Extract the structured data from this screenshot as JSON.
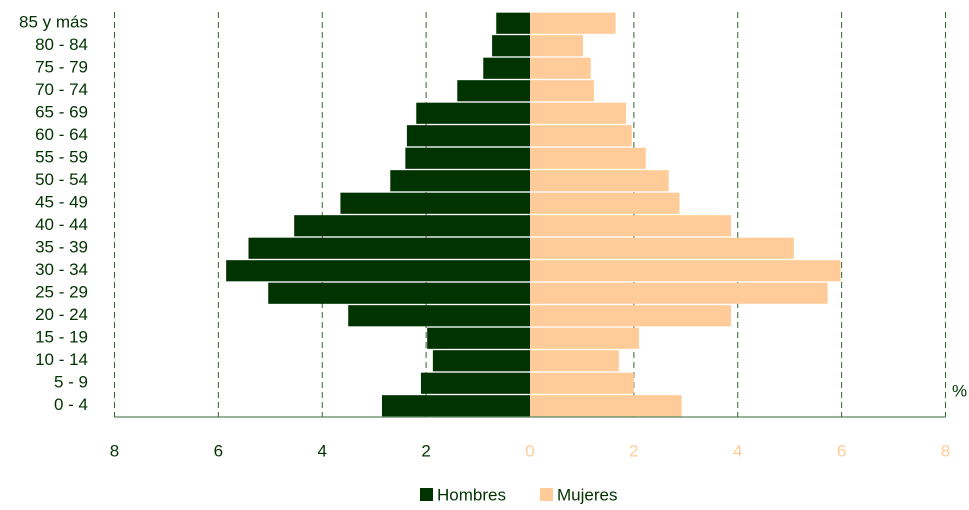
{
  "chart_data": {
    "type": "pyramid",
    "categories": [
      "85 y más",
      "80 - 84",
      "75 - 79",
      "70 - 74",
      "65 - 69",
      "60 - 64",
      "55 - 59",
      "50 - 54",
      "45 - 49",
      "40 - 44",
      "35 - 39",
      "30 - 34",
      "25 - 29",
      "20 - 24",
      "15 - 19",
      "10 - 14",
      "5 - 9",
      "0 - 4"
    ],
    "series": [
      {
        "name": "Hombres",
        "color": "#003300",
        "side": "left",
        "values": [
          0.65,
          0.73,
          0.9,
          1.4,
          2.19,
          2.37,
          2.4,
          2.69,
          3.65,
          4.54,
          5.42,
          5.85,
          5.04,
          3.5,
          1.98,
          1.87,
          2.1,
          2.85
        ]
      },
      {
        "name": "Mujeres",
        "color": "#ffcc99",
        "side": "right",
        "values": [
          1.65,
          1.02,
          1.17,
          1.23,
          1.85,
          1.96,
          2.23,
          2.67,
          2.88,
          3.87,
          5.08,
          5.98,
          5.73,
          3.87,
          2.1,
          1.71,
          2.0,
          2.92
        ]
      }
    ],
    "xlim": [
      0,
      8
    ],
    "xticks_left": [
      8,
      6,
      4,
      2
    ],
    "xticks_right": [
      0,
      2,
      4,
      6,
      8
    ],
    "x_unit": "%",
    "grid": true
  }
}
